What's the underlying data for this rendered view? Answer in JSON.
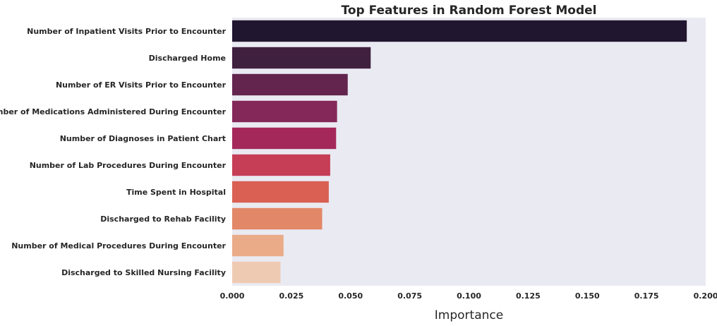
{
  "chart_data": {
    "type": "bar",
    "orientation": "horizontal",
    "title": "Top Features in Random Forest Model",
    "xlabel": "Importance",
    "ylabel": "",
    "xlim": [
      0,
      0.2
    ],
    "grid": false,
    "categories": [
      "Number of Inpatient Visits Prior to Encounter",
      "Discharged Home",
      "Number of ER Visits Prior to Encounter",
      "Number of Medications Administered During Encounter",
      "Number of Diagnoses in Patient Chart",
      "Number of Lab Procedures During Encounter",
      "Time Spent in Hospital",
      "Discharged to Rehab Facility",
      "Number of Medical Procedures During Encounter",
      "Discharged to Skilled Nursing Facility"
    ],
    "values": [
      0.192,
      0.0585,
      0.0488,
      0.0443,
      0.0439,
      0.0414,
      0.0408,
      0.038,
      0.0217,
      0.0204
    ],
    "colors": [
      "#211630",
      "#40203f",
      "#63254e",
      "#84285a",
      "#a5285a",
      "#c63d56",
      "#d96053",
      "#e28767",
      "#eaab89",
      "#efcab3"
    ],
    "xticks": [
      "0.000",
      "0.025",
      "0.050",
      "0.075",
      "0.100",
      "0.125",
      "0.150",
      "0.175",
      "0.200"
    ],
    "xtick_values": [
      0,
      0.025,
      0.05,
      0.075,
      0.1,
      0.125,
      0.15,
      0.175,
      0.2
    ],
    "plot_background": "#eaeaf2"
  }
}
